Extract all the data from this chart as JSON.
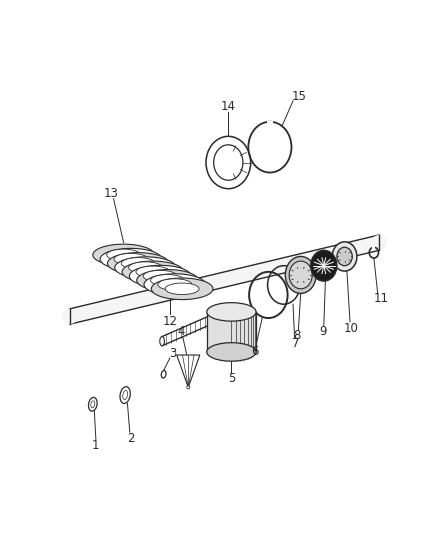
{
  "background_color": "#ffffff",
  "line_color": "#2a2a2a",
  "label_fontsize": 8.5,
  "fig_width": 4.38,
  "fig_height": 5.33,
  "dpi": 100
}
